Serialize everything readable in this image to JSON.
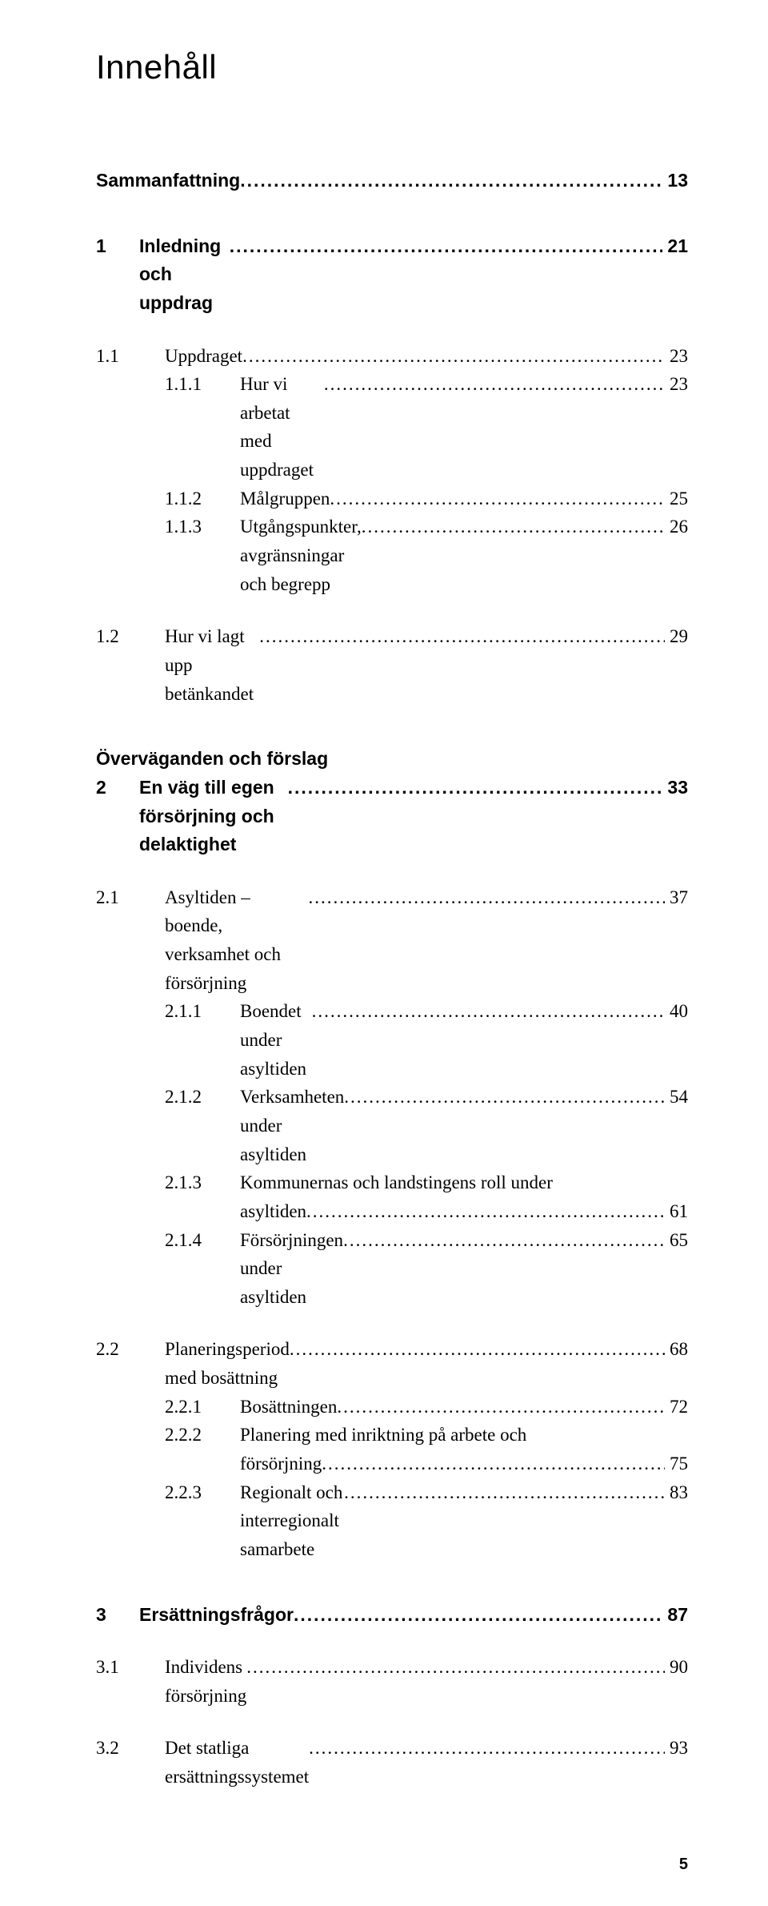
{
  "title": "Innehåll",
  "page_number": "5",
  "lines": [
    {
      "num": "",
      "label": "Sammanfattning",
      "page": "13",
      "style": "bold",
      "gap": "none",
      "leader": true,
      "level": 0
    },
    {
      "num": "1",
      "label": "Inledning och uppdrag",
      "page": "21",
      "style": "bold",
      "gap": "xl",
      "leader": true,
      "level": 0
    },
    {
      "num": "1.1",
      "label": "Uppdraget",
      "page": "23",
      "style": "serif",
      "gap": "lg",
      "leader": true,
      "level": 1
    },
    {
      "num": "1.1.1",
      "label": "Hur vi arbetat med uppdraget",
      "page": "23",
      "style": "serif",
      "gap": "sm",
      "leader": true,
      "level": 2
    },
    {
      "num": "1.1.2",
      "label": "Målgruppen",
      "page": "25",
      "style": "serif",
      "gap": "sm",
      "leader": true,
      "level": 2
    },
    {
      "num": "1.1.3",
      "label": "Utgångspunkter, avgränsningar och begrepp",
      "page": "26",
      "style": "serif",
      "gap": "sm",
      "leader": true,
      "level": 2
    },
    {
      "num": "1.2",
      "label": "Hur vi lagt upp betänkandet",
      "page": "29",
      "style": "serif",
      "gap": "lg",
      "leader": true,
      "level": 1
    },
    {
      "num": "",
      "label": "Överväganden och förslag",
      "page": "",
      "style": "bold",
      "gap": "xl",
      "leader": false,
      "level": 0
    },
    {
      "num": "2",
      "label": "En väg till egen försörjning och delaktighet",
      "page": "33",
      "style": "bold",
      "gap": "sm",
      "leader": true,
      "level": 0
    },
    {
      "num": "2.1",
      "label": "Asyltiden – boende, verksamhet och försörjning",
      "page": "37",
      "style": "serif",
      "gap": "lg",
      "leader": true,
      "level": 1
    },
    {
      "num": "2.1.1",
      "label": "Boendet under asyltiden",
      "page": "40",
      "style": "serif",
      "gap": "sm",
      "leader": true,
      "level": 2
    },
    {
      "num": "2.1.2",
      "label": "Verksamheten under asyltiden",
      "page": "54",
      "style": "serif",
      "gap": "sm",
      "leader": true,
      "level": 2
    },
    {
      "num": "2.1.3",
      "label": "Kommunernas och landstingens roll under",
      "page": "",
      "style": "serif",
      "gap": "sm",
      "leader": false,
      "level": 2
    },
    {
      "num": "",
      "label": "asyltiden",
      "page": "61",
      "style": "serif",
      "gap": "sm",
      "leader": true,
      "level": 2,
      "cont": true
    },
    {
      "num": "2.1.4",
      "label": "Försörjningen under asyltiden",
      "page": "65",
      "style": "serif",
      "gap": "sm",
      "leader": true,
      "level": 2
    },
    {
      "num": "2.2",
      "label": "Planeringsperiod med bosättning",
      "page": "68",
      "style": "serif",
      "gap": "lg",
      "leader": true,
      "level": 1
    },
    {
      "num": "2.2.1",
      "label": "Bosättningen",
      "page": "72",
      "style": "serif",
      "gap": "sm",
      "leader": true,
      "level": 2
    },
    {
      "num": "2.2.2",
      "label": "Planering med inriktning på arbete och",
      "page": "",
      "style": "serif",
      "gap": "sm",
      "leader": false,
      "level": 2
    },
    {
      "num": "",
      "label": "försörjning",
      "page": "75",
      "style": "serif",
      "gap": "sm",
      "leader": true,
      "level": 2,
      "cont": true
    },
    {
      "num": "2.2.3",
      "label": "Regionalt och interregionalt samarbete",
      "page": "83",
      "style": "serif",
      "gap": "sm",
      "leader": true,
      "level": 2
    },
    {
      "num": "3",
      "label": "Ersättningsfrågor",
      "page": "87",
      "style": "bold",
      "gap": "xl",
      "leader": true,
      "level": 0
    },
    {
      "num": "3.1",
      "label": "Individens försörjning",
      "page": "90",
      "style": "serif",
      "gap": "lg",
      "leader": true,
      "level": 1
    },
    {
      "num": "3.2",
      "label": "Det statliga ersättningssystemet",
      "page": "93",
      "style": "serif",
      "gap": "lg",
      "leader": true,
      "level": 1
    }
  ]
}
